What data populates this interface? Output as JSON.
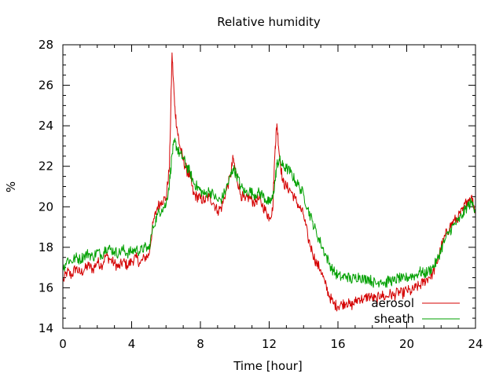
{
  "chart_data": {
    "type": "line",
    "title": "Relative humidity",
    "xlabel": "Time [hour]",
    "ylabel": "%",
    "xlim": [
      0,
      24
    ],
    "ylim": [
      14,
      28
    ],
    "xticks": [
      0,
      4,
      8,
      12,
      16,
      20,
      24
    ],
    "yticks": [
      14,
      16,
      18,
      20,
      22,
      24,
      26,
      28
    ],
    "grid": false,
    "legend_position": "bottom-right",
    "series": [
      {
        "name": "aerosol",
        "color": "#d40000",
        "points": [
          [
            0,
            16.3
          ],
          [
            0.25,
            16.8
          ],
          [
            0.5,
            16.6
          ],
          [
            0.75,
            17.0
          ],
          [
            1.0,
            16.7
          ],
          [
            1.25,
            16.9
          ],
          [
            1.5,
            17.1
          ],
          [
            1.75,
            16.9
          ],
          [
            2.0,
            17.3
          ],
          [
            2.25,
            17.1
          ],
          [
            2.5,
            17.6
          ],
          [
            2.75,
            17.4
          ],
          [
            3.0,
            17.2
          ],
          [
            3.25,
            17.0
          ],
          [
            3.5,
            17.3
          ],
          [
            3.75,
            17.1
          ],
          [
            4.0,
            17.3
          ],
          [
            4.25,
            17.5
          ],
          [
            4.5,
            17.2
          ],
          [
            4.75,
            17.5
          ],
          [
            5.0,
            17.6
          ],
          [
            5.25,
            19.2
          ],
          [
            5.5,
            20.0
          ],
          [
            5.75,
            20.3
          ],
          [
            6.0,
            20.4
          ],
          [
            6.2,
            22.0
          ],
          [
            6.35,
            27.6
          ],
          [
            6.5,
            25.0
          ],
          [
            6.65,
            23.8
          ],
          [
            6.8,
            23.0
          ],
          [
            7.0,
            22.3
          ],
          [
            7.2,
            21.8
          ],
          [
            7.4,
            21.5
          ],
          [
            7.6,
            20.6
          ],
          [
            7.8,
            20.5
          ],
          [
            8.0,
            20.4
          ],
          [
            8.25,
            20.3
          ],
          [
            8.5,
            20.5
          ],
          [
            8.75,
            20.2
          ],
          [
            9.0,
            19.8
          ],
          [
            9.25,
            20.0
          ],
          [
            9.5,
            20.8
          ],
          [
            9.75,
            21.5
          ],
          [
            9.9,
            22.4
          ],
          [
            10.1,
            21.5
          ],
          [
            10.35,
            20.6
          ],
          [
            10.6,
            20.3
          ],
          [
            10.85,
            20.5
          ],
          [
            11.1,
            20.2
          ],
          [
            11.35,
            20.4
          ],
          [
            11.6,
            20.1
          ],
          [
            11.85,
            19.7
          ],
          [
            12.0,
            19.5
          ],
          [
            12.2,
            19.8
          ],
          [
            12.35,
            23.0
          ],
          [
            12.45,
            24.1
          ],
          [
            12.6,
            22.5
          ],
          [
            12.8,
            21.2
          ],
          [
            13.0,
            21.0
          ],
          [
            13.25,
            20.8
          ],
          [
            13.5,
            20.4
          ],
          [
            13.75,
            20.0
          ],
          [
            14.0,
            19.6
          ],
          [
            14.25,
            18.5
          ],
          [
            14.5,
            17.8
          ],
          [
            14.75,
            17.2
          ],
          [
            15.0,
            16.9
          ],
          [
            15.25,
            16.2
          ],
          [
            15.5,
            15.6
          ],
          [
            15.75,
            15.2
          ],
          [
            16.0,
            15.1
          ],
          [
            16.25,
            15.2
          ],
          [
            16.5,
            15.3
          ],
          [
            16.75,
            15.1
          ],
          [
            17.0,
            15.3
          ],
          [
            17.25,
            15.5
          ],
          [
            17.5,
            15.4
          ],
          [
            17.75,
            15.6
          ],
          [
            18.0,
            15.5
          ],
          [
            18.25,
            15.4
          ],
          [
            18.5,
            15.7
          ],
          [
            18.75,
            15.5
          ],
          [
            19.0,
            15.7
          ],
          [
            19.25,
            15.6
          ],
          [
            19.5,
            15.8
          ],
          [
            19.75,
            15.7
          ],
          [
            20.0,
            15.9
          ],
          [
            20.25,
            15.8
          ],
          [
            20.5,
            16.0
          ],
          [
            20.75,
            16.1
          ],
          [
            21.0,
            16.3
          ],
          [
            21.25,
            16.5
          ],
          [
            21.5,
            16.7
          ],
          [
            21.75,
            17.2
          ],
          [
            22.0,
            18.0
          ],
          [
            22.25,
            18.6
          ],
          [
            22.5,
            19.0
          ],
          [
            22.75,
            19.3
          ],
          [
            23.0,
            19.5
          ],
          [
            23.25,
            19.8
          ],
          [
            23.5,
            20.3
          ],
          [
            23.75,
            20.5
          ],
          [
            24.0,
            19.8
          ]
        ]
      },
      {
        "name": "sheath",
        "color": "#00a000",
        "points": [
          [
            0,
            16.9
          ],
          [
            0.25,
            17.4
          ],
          [
            0.5,
            17.3
          ],
          [
            0.75,
            17.5
          ],
          [
            1.0,
            17.4
          ],
          [
            1.25,
            17.6
          ],
          [
            1.5,
            17.7
          ],
          [
            1.75,
            17.5
          ],
          [
            2.0,
            17.8
          ],
          [
            2.25,
            17.6
          ],
          [
            2.5,
            18.0
          ],
          [
            2.75,
            17.9
          ],
          [
            3.0,
            17.8
          ],
          [
            3.25,
            17.7
          ],
          [
            3.5,
            17.9
          ],
          [
            3.75,
            17.7
          ],
          [
            4.0,
            17.8
          ],
          [
            4.25,
            17.9
          ],
          [
            4.5,
            17.8
          ],
          [
            4.75,
            18.0
          ],
          [
            5.0,
            17.9
          ],
          [
            5.25,
            19.0
          ],
          [
            5.5,
            19.6
          ],
          [
            5.75,
            19.9
          ],
          [
            6.0,
            20.1
          ],
          [
            6.2,
            21.2
          ],
          [
            6.35,
            22.6
          ],
          [
            6.5,
            23.2
          ],
          [
            6.65,
            22.9
          ],
          [
            6.8,
            22.6
          ],
          [
            7.0,
            22.4
          ],
          [
            7.2,
            22.0
          ],
          [
            7.4,
            21.7
          ],
          [
            7.6,
            21.2
          ],
          [
            7.8,
            21.0
          ],
          [
            8.0,
            20.8
          ],
          [
            8.25,
            20.6
          ],
          [
            8.5,
            20.8
          ],
          [
            8.75,
            20.6
          ],
          [
            9.0,
            20.3
          ],
          [
            9.25,
            20.4
          ],
          [
            9.5,
            20.9
          ],
          [
            9.75,
            21.5
          ],
          [
            9.9,
            21.9
          ],
          [
            10.1,
            21.6
          ],
          [
            10.35,
            21.0
          ],
          [
            10.6,
            20.7
          ],
          [
            10.85,
            20.8
          ],
          [
            11.1,
            20.6
          ],
          [
            11.35,
            20.7
          ],
          [
            11.6,
            20.6
          ],
          [
            11.85,
            20.3
          ],
          [
            12.0,
            20.2
          ],
          [
            12.2,
            20.4
          ],
          [
            12.35,
            21.3
          ],
          [
            12.45,
            22.1
          ],
          [
            12.6,
            22.3
          ],
          [
            12.8,
            22.0
          ],
          [
            13.0,
            21.9
          ],
          [
            13.25,
            21.7
          ],
          [
            13.5,
            21.3
          ],
          [
            13.75,
            21.0
          ],
          [
            14.0,
            20.6
          ],
          [
            14.25,
            19.9
          ],
          [
            14.5,
            19.3
          ],
          [
            14.75,
            18.7
          ],
          [
            15.0,
            18.2
          ],
          [
            15.25,
            17.7
          ],
          [
            15.5,
            17.2
          ],
          [
            15.75,
            16.8
          ],
          [
            16.0,
            16.6
          ],
          [
            16.25,
            16.5
          ],
          [
            16.5,
            16.6
          ],
          [
            16.75,
            16.4
          ],
          [
            17.0,
            16.5
          ],
          [
            17.25,
            16.6
          ],
          [
            17.5,
            16.4
          ],
          [
            17.75,
            16.5
          ],
          [
            18.0,
            16.3
          ],
          [
            18.25,
            16.2
          ],
          [
            18.5,
            16.4
          ],
          [
            18.75,
            16.2
          ],
          [
            19.0,
            16.4
          ],
          [
            19.25,
            16.3
          ],
          [
            19.5,
            16.5
          ],
          [
            19.75,
            16.4
          ],
          [
            20.0,
            16.5
          ],
          [
            20.25,
            16.6
          ],
          [
            20.5,
            16.6
          ],
          [
            20.75,
            16.8
          ],
          [
            21.0,
            16.7
          ],
          [
            21.25,
            16.8
          ],
          [
            21.5,
            17.0
          ],
          [
            21.75,
            17.3
          ],
          [
            22.0,
            17.9
          ],
          [
            22.25,
            18.4
          ],
          [
            22.5,
            18.8
          ],
          [
            22.75,
            19.1
          ],
          [
            23.0,
            19.3
          ],
          [
            23.25,
            19.6
          ],
          [
            23.5,
            20.0
          ],
          [
            23.75,
            20.2
          ],
          [
            24.0,
            19.9
          ]
        ]
      }
    ]
  }
}
